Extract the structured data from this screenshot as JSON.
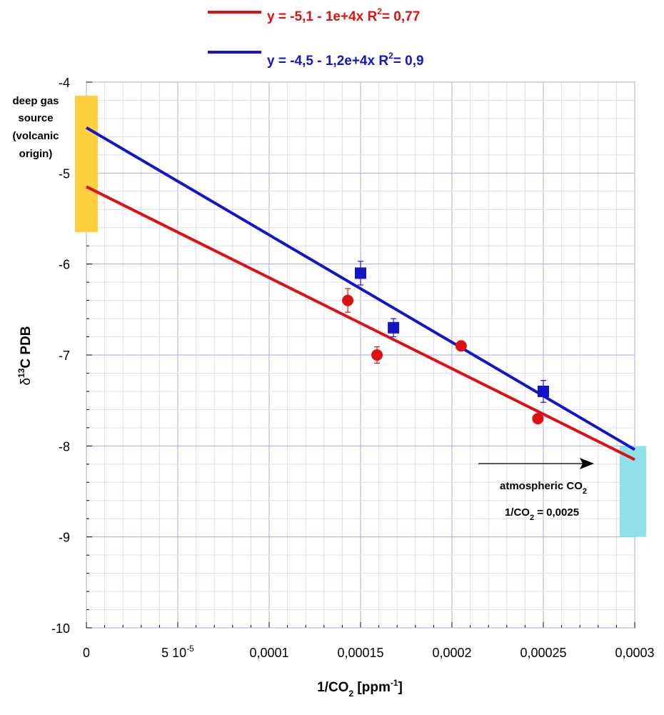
{
  "chart_data": {
    "type": "scatter",
    "title": "",
    "xlabel": {
      "main": "1/CO",
      "sub": "2",
      "unit_open": " [ppm",
      "unit_sup": "-1",
      "unit_close": "]"
    },
    "ylabel": {
      "delta": "δ",
      "sup": "13",
      "rest": "C PDB"
    },
    "xlim": [
      0,
      0.0003
    ],
    "ylim": [
      -10,
      -4
    ],
    "x_ticks": [
      0,
      5e-05,
      0.0001,
      0.00015,
      0.0002,
      0.00025,
      0.0003
    ],
    "x_tick_labels": [
      "0",
      "5 10",
      "0,0001",
      "0,00015",
      "0,0002",
      "0,00025",
      "0,0003"
    ],
    "x_tick_label_sup": [
      "",
      "-5",
      "",
      "",
      "",
      "",
      ""
    ],
    "y_ticks": [
      -10,
      -9,
      -8,
      -7,
      -6,
      -5,
      -4
    ],
    "y_tick_labels": [
      "-10",
      "-9",
      "-8",
      "-7",
      "-6",
      "-5",
      "-4"
    ],
    "grid": true,
    "series": [
      {
        "marker": "circle",
        "color": "#e01010",
        "points": [
          {
            "x": 0.000143,
            "y": -6.4,
            "err": 0.13
          },
          {
            "x": 0.000159,
            "y": -7.0,
            "err": 0.09
          },
          {
            "x": 0.000205,
            "y": -6.9,
            "err": 0
          },
          {
            "x": 0.000247,
            "y": -7.7,
            "err": 0
          }
        ],
        "fit": {
          "intercept": -5.15,
          "slope": -10000
        },
        "legend": {
          "text": "y = -5,1 - 1e+4x   R",
          "sup": "2",
          "tail": "= 0,77"
        }
      },
      {
        "marker": "square",
        "color": "#1414c8",
        "points": [
          {
            "x": 0.00015,
            "y": -6.1,
            "err": 0.13
          },
          {
            "x": 0.000168,
            "y": -6.7,
            "err": 0.1
          },
          {
            "x": 0.00025,
            "y": -7.4,
            "err": 0.12
          }
        ],
        "fit": {
          "intercept": -4.5,
          "slope": -11800
        },
        "legend": {
          "text": "y = -4,5 - 1,2e+4x   R",
          "sup": "2",
          "tail": "= 0,9"
        }
      }
    ],
    "annotations": {
      "deep_gas": {
        "lines": [
          "deep gas",
          "source",
          "(volcanic",
          "origin)"
        ],
        "color": "#fdd040",
        "y_range": [
          -5.65,
          -4.15
        ]
      },
      "atmospheric": {
        "line1_main": "atmospheric CO",
        "line1_sub": "2",
        "line2_main": "1/CO",
        "line2_sub": "2",
        "line2_tail": " = 0,0025",
        "color": "#8fe0ea",
        "y_range": [
          -9.0,
          -8.0
        ]
      }
    }
  }
}
